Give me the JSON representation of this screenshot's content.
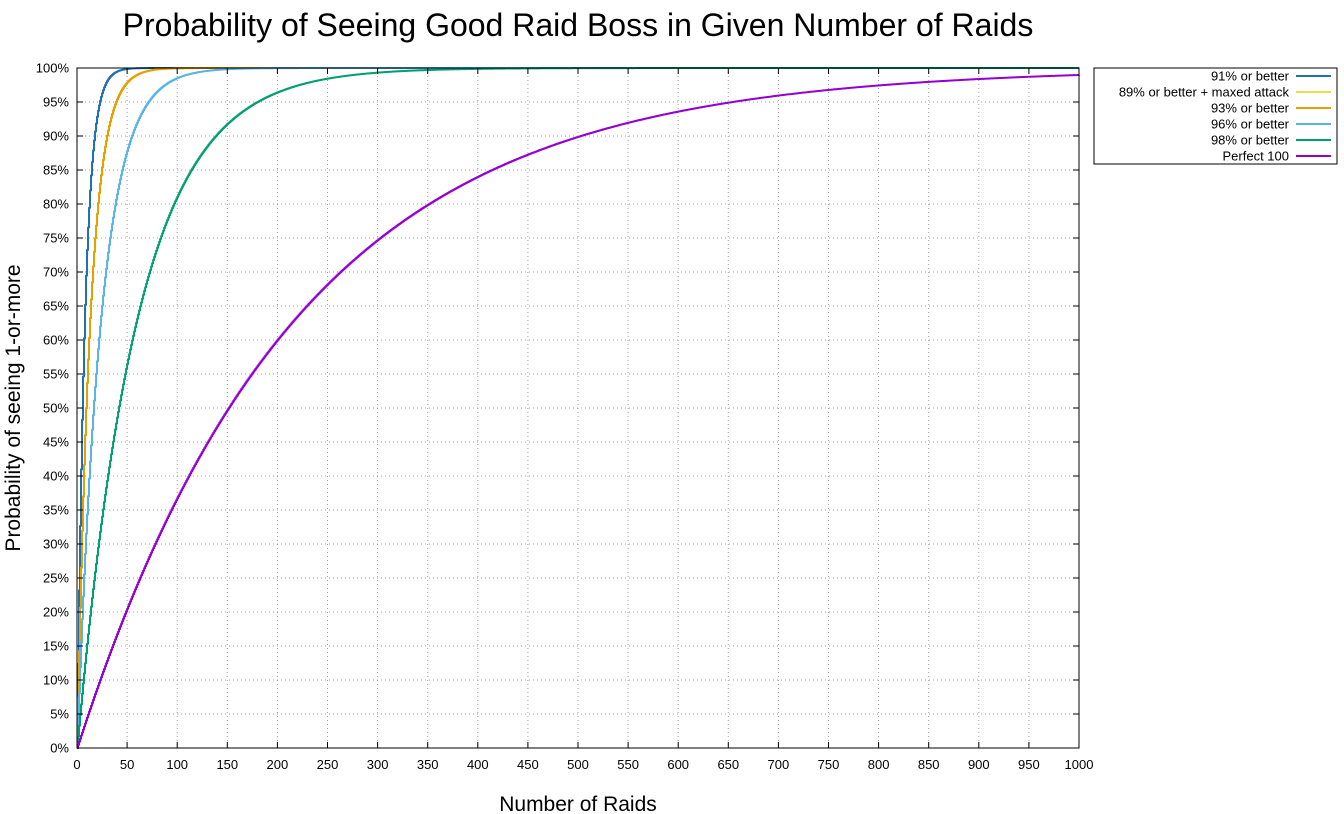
{
  "chart_data": {
    "type": "line",
    "title": "Probability of Seeing Good Raid Boss in Given Number of Raids",
    "xlabel": "Number of Raids",
    "ylabel": "Probability of seeing 1-or-more",
    "xlim": [
      0,
      1000
    ],
    "ylim": [
      0,
      100
    ],
    "x_ticks": [
      "0",
      "50",
      "100",
      "150",
      "200",
      "250",
      "300",
      "350",
      "400",
      "450",
      "500",
      "550",
      "600",
      "650",
      "700",
      "750",
      "800",
      "850",
      "900",
      "950",
      "1000"
    ],
    "y_ticks": [
      "0%",
      "5%",
      "10%",
      "15%",
      "20%",
      "25%",
      "30%",
      "35%",
      "40%",
      "45%",
      "50%",
      "55%",
      "60%",
      "65%",
      "70%",
      "75%",
      "80%",
      "85%",
      "90%",
      "95%",
      "100%"
    ],
    "grid": true,
    "legend_position": "top-right-outside",
    "series": [
      {
        "name": "91% or better",
        "color": "#1f6fb4",
        "per_raid_probability": 0.1235
      },
      {
        "name": "89% or better + maxed attack",
        "color": "#e8e04a",
        "per_raid_probability": 0.0741
      },
      {
        "name": "93% or better",
        "color": "#e69f00",
        "per_raid_probability": 0.0741
      },
      {
        "name": "96% or better",
        "color": "#56b4e9",
        "per_raid_probability": 0.0412
      },
      {
        "name": "98% or better",
        "color": "#009e73",
        "per_raid_probability": 0.0165
      },
      {
        "name": "Perfect 100",
        "color": "#9400d3",
        "per_raid_probability": 0.00457
      }
    ]
  }
}
